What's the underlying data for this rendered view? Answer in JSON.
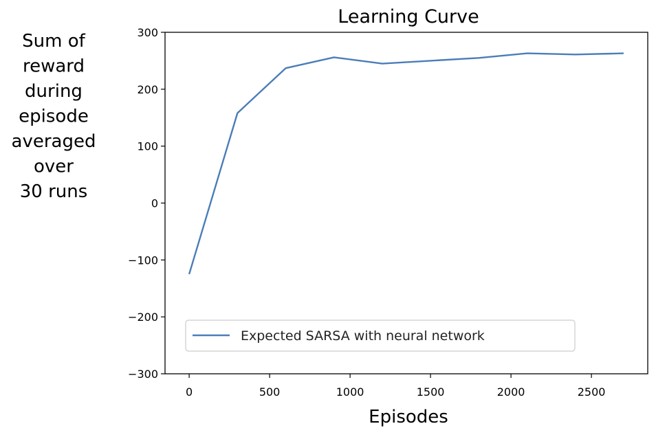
{
  "chart_data": {
    "type": "line",
    "title": "Learning Curve",
    "xlabel": "Episodes",
    "ylabel_lines": [
      "Sum of",
      "reward",
      "during",
      "episode",
      "averaged",
      "over",
      "30 runs"
    ],
    "xlim": [
      -150,
      2850
    ],
    "ylim": [
      -300,
      300
    ],
    "xticks": [
      0,
      500,
      1000,
      1500,
      2000,
      2500
    ],
    "xtick_labels": [
      "0",
      "500",
      "1000",
      "1500",
      "2000",
      "2500"
    ],
    "yticks": [
      -300,
      -200,
      -100,
      0,
      100,
      200,
      300
    ],
    "ytick_labels": [
      "−300",
      "−200",
      "−100",
      "0",
      "100",
      "200",
      "300"
    ],
    "grid": false,
    "legend_position": "lower-left",
    "series": [
      {
        "name": "Expected SARSA with neural network",
        "color": "#4a7db8",
        "x": [
          0,
          300,
          600,
          900,
          1200,
          1500,
          1800,
          2100,
          2400,
          2700
        ],
        "y": [
          -125,
          158,
          237,
          256,
          245,
          250,
          255,
          263,
          261,
          263
        ]
      }
    ]
  }
}
